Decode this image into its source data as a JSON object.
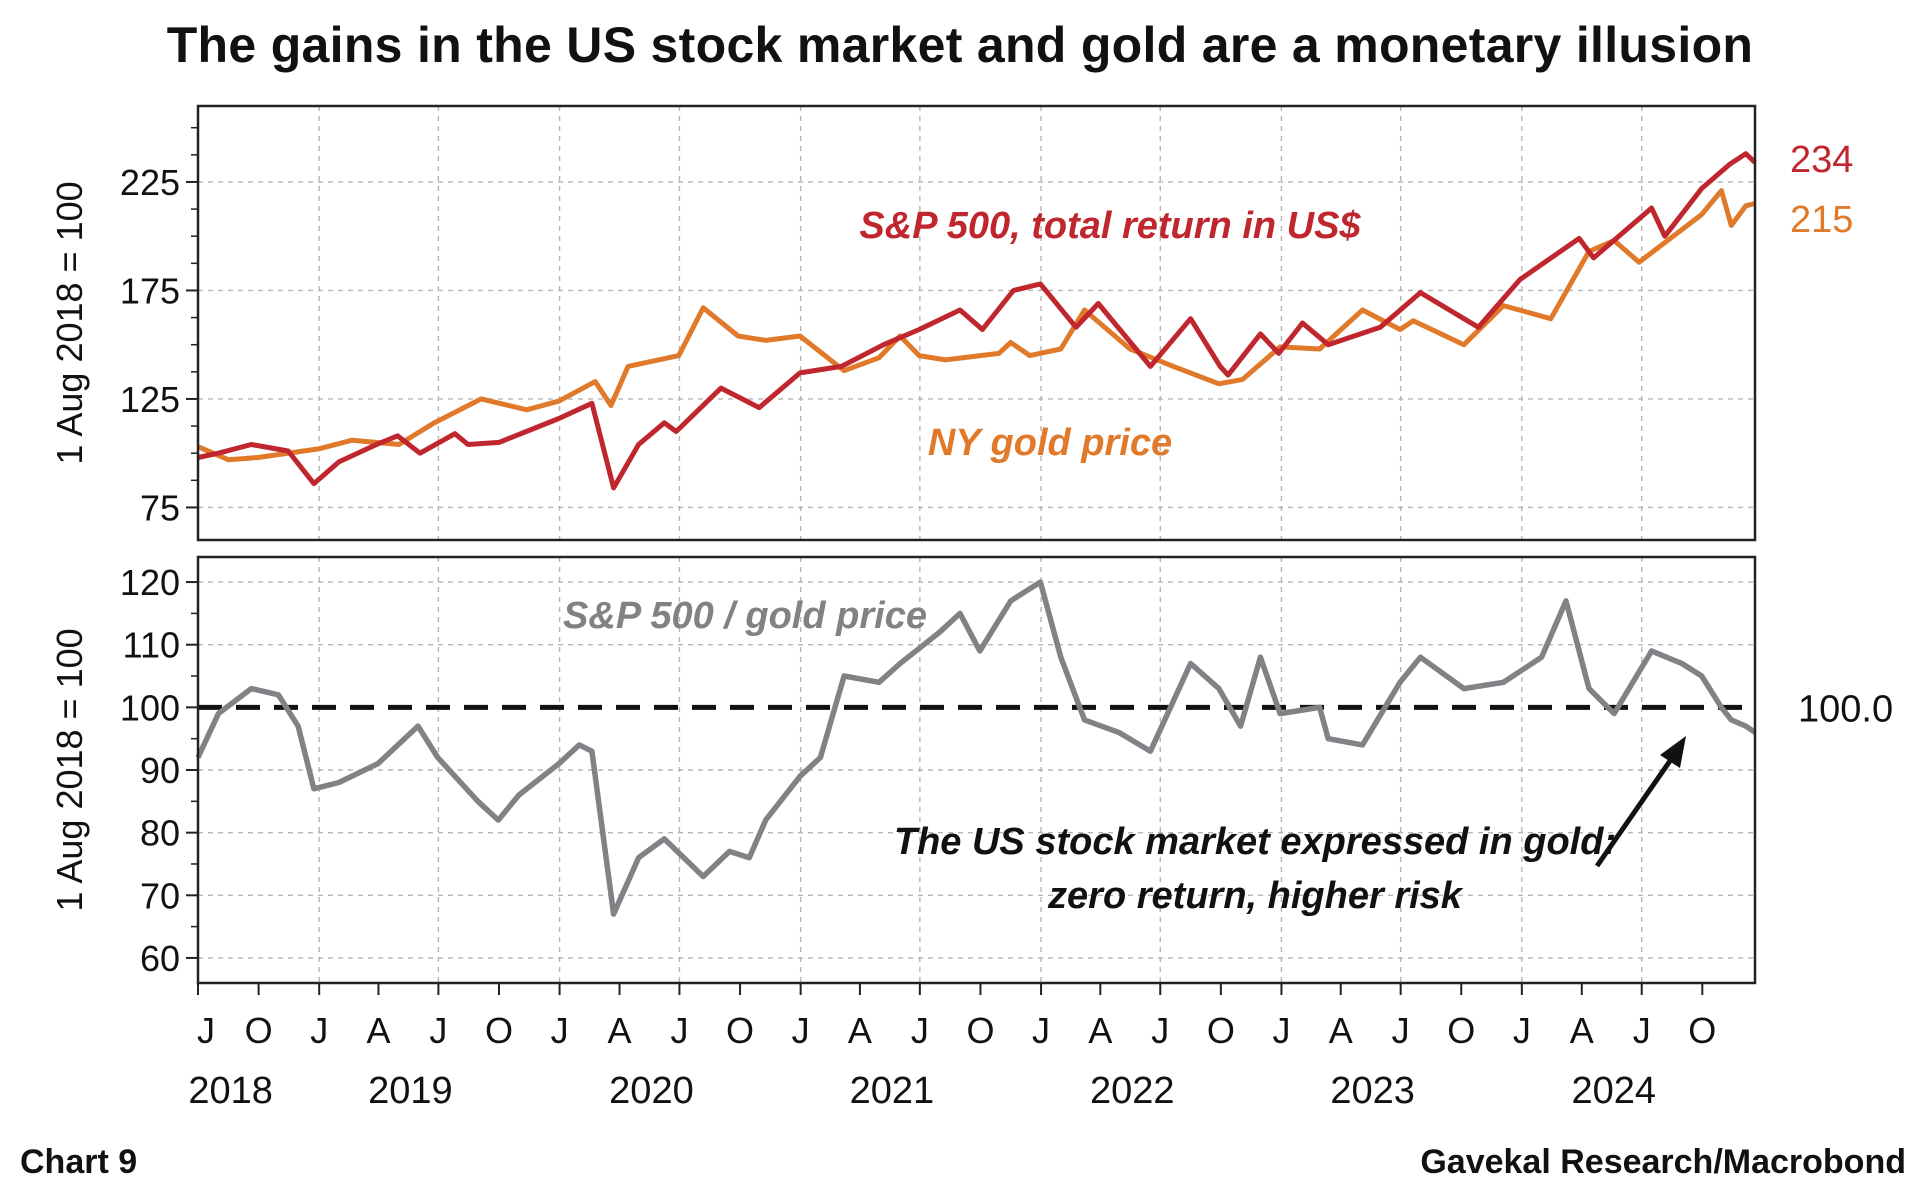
{
  "title": "The gains in the US stock market and gold are a monetary illusion",
  "footer": {
    "left": "Chart 9",
    "right": "Gavekal Research/Macrobond"
  },
  "colors": {
    "sp500": "#c0262d",
    "gold": "#e07a2a",
    "ratio": "#808285",
    "grid": "#b5b5b5",
    "frame": "#222222"
  },
  "chart_data": [
    {
      "type": "line",
      "panel": "top",
      "ylabel": "1 Aug 2018 = 100",
      "ylim": [
        60,
        260
      ],
      "yticks": [
        75,
        125,
        175,
        225
      ],
      "x_range": [
        "2018-07-01",
        "2024-12-20"
      ],
      "series": [
        {
          "name": "S&P 500, total return in US$",
          "last_value_label": "234",
          "points": [
            [
              "2018-07-01",
              98
            ],
            [
              "2018-08-01",
              100
            ],
            [
              "2018-09-20",
              104
            ],
            [
              "2018-11-15",
              101
            ],
            [
              "2018-12-24",
              86
            ],
            [
              "2019-01-31",
              96
            ],
            [
              "2019-03-29",
              104
            ],
            [
              "2019-04-30",
              108
            ],
            [
              "2019-06-03",
              100
            ],
            [
              "2019-07-26",
              109
            ],
            [
              "2019-08-15",
              104
            ],
            [
              "2019-10-01",
              105
            ],
            [
              "2019-12-31",
              116
            ],
            [
              "2020-02-19",
              123
            ],
            [
              "2020-03-23",
              84
            ],
            [
              "2020-04-30",
              104
            ],
            [
              "2020-06-08",
              114
            ],
            [
              "2020-06-26",
              110
            ],
            [
              "2020-09-02",
              130
            ],
            [
              "2020-10-30",
              121
            ],
            [
              "2020-12-31",
              137
            ],
            [
              "2021-03-04",
              140
            ],
            [
              "2021-05-07",
              150
            ],
            [
              "2021-06-30",
              157
            ],
            [
              "2021-08-31",
              166
            ],
            [
              "2021-10-04",
              157
            ],
            [
              "2021-11-20",
              175
            ],
            [
              "2021-12-31",
              178
            ],
            [
              "2022-02-23",
              158
            ],
            [
              "2022-03-29",
              169
            ],
            [
              "2022-06-16",
              140
            ],
            [
              "2022-08-16",
              162
            ],
            [
              "2022-09-30",
              140
            ],
            [
              "2022-10-12",
              136
            ],
            [
              "2022-11-30",
              155
            ],
            [
              "2022-12-28",
              146
            ],
            [
              "2023-02-02",
              160
            ],
            [
              "2023-03-13",
              150
            ],
            [
              "2023-05-31",
              158
            ],
            [
              "2023-07-31",
              174
            ],
            [
              "2023-10-27",
              158
            ],
            [
              "2023-12-29",
              180
            ],
            [
              "2024-03-28",
              199
            ],
            [
              "2024-04-19",
              190
            ],
            [
              "2024-07-16",
              213
            ],
            [
              "2024-08-05",
              200
            ],
            [
              "2024-09-30",
              222
            ],
            [
              "2024-11-11",
              233
            ],
            [
              "2024-12-06",
              238
            ],
            [
              "2024-12-20",
              234
            ]
          ]
        },
        {
          "name": "NY gold price",
          "last_value_label": "215",
          "points": [
            [
              "2018-07-01",
              103
            ],
            [
              "2018-08-16",
              97
            ],
            [
              "2018-09-30",
              98
            ],
            [
              "2018-12-31",
              102
            ],
            [
              "2019-02-20",
              106
            ],
            [
              "2019-05-02",
              104
            ],
            [
              "2019-06-25",
              114
            ],
            [
              "2019-09-04",
              125
            ],
            [
              "2019-11-12",
              120
            ],
            [
              "2019-12-31",
              124
            ],
            [
              "2020-02-24",
              133
            ],
            [
              "2020-03-19",
              122
            ],
            [
              "2020-04-14",
              140
            ],
            [
              "2020-06-30",
              145
            ],
            [
              "2020-08-06",
              167
            ],
            [
              "2020-09-28",
              154
            ],
            [
              "2020-11-09",
              152
            ],
            [
              "2020-12-31",
              154
            ],
            [
              "2021-03-08",
              138
            ],
            [
              "2021-04-30",
              144
            ],
            [
              "2021-06-01",
              154
            ],
            [
              "2021-06-30",
              145
            ],
            [
              "2021-08-09",
              143
            ],
            [
              "2021-10-29",
              146
            ],
            [
              "2021-11-16",
              151
            ],
            [
              "2021-12-15",
              145
            ],
            [
              "2022-01-31",
              148
            ],
            [
              "2022-03-08",
              166
            ],
            [
              "2022-05-16",
              148
            ],
            [
              "2022-07-21",
              140
            ],
            [
              "2022-09-28",
              132
            ],
            [
              "2022-11-03",
              134
            ],
            [
              "2022-12-30",
              149
            ],
            [
              "2023-02-28",
              148
            ],
            [
              "2023-05-04",
              166
            ],
            [
              "2023-06-30",
              157
            ],
            [
              "2023-07-20",
              161
            ],
            [
              "2023-10-05",
              150
            ],
            [
              "2023-12-04",
              168
            ],
            [
              "2024-02-14",
              162
            ],
            [
              "2024-04-12",
              193
            ],
            [
              "2024-05-20",
              198
            ],
            [
              "2024-06-27",
              188
            ],
            [
              "2024-09-30",
              210
            ],
            [
              "2024-10-30",
              221
            ],
            [
              "2024-11-14",
              205
            ],
            [
              "2024-12-06",
              214
            ],
            [
              "2024-12-20",
              215
            ]
          ]
        }
      ],
      "annotations": [
        {
          "text": "S&P 500, total return in US$",
          "series": "sp500"
        },
        {
          "text": "NY gold price",
          "series": "gold"
        }
      ]
    },
    {
      "type": "line",
      "panel": "bottom",
      "ylabel": "1 Aug 2018 = 100",
      "ylim": [
        56,
        124
      ],
      "yticks": [
        60,
        70,
        80,
        90,
        100,
        110,
        120
      ],
      "reference_line": {
        "value": 100,
        "style": "dashed",
        "label": "100.0"
      },
      "x_range": [
        "2018-07-01",
        "2024-12-20"
      ],
      "series": [
        {
          "name": "S&P 500 / gold price",
          "points": [
            [
              "2018-07-01",
              92
            ],
            [
              "2018-08-01",
              99
            ],
            [
              "2018-09-20",
              103
            ],
            [
              "2018-10-31",
              102
            ],
            [
              "2018-11-30",
              97
            ],
            [
              "2018-12-24",
              87
            ],
            [
              "2019-01-31",
              88
            ],
            [
              "2019-03-31",
              91
            ],
            [
              "2019-05-31",
              97
            ],
            [
              "2019-06-30",
              92
            ],
            [
              "2019-08-30",
              85
            ],
            [
              "2019-09-30",
              82
            ],
            [
              "2019-10-31",
              86
            ],
            [
              "2019-12-31",
              91
            ],
            [
              "2020-01-31",
              94
            ],
            [
              "2020-02-19",
              93
            ],
            [
              "2020-03-23",
              67
            ],
            [
              "2020-04-30",
              76
            ],
            [
              "2020-06-08",
              79
            ],
            [
              "2020-08-06",
              73
            ],
            [
              "2020-09-15",
              77
            ],
            [
              "2020-10-15",
              76
            ],
            [
              "2020-11-09",
              82
            ],
            [
              "2020-12-31",
              89
            ],
            [
              "2021-01-31",
              92
            ],
            [
              "2021-03-08",
              105
            ],
            [
              "2021-04-30",
              104
            ],
            [
              "2021-06-01",
              107
            ],
            [
              "2021-07-31",
              112
            ],
            [
              "2021-08-31",
              115
            ],
            [
              "2021-09-30",
              109
            ],
            [
              "2021-11-16",
              117
            ],
            [
              "2021-12-31",
              120
            ],
            [
              "2022-01-31",
              108
            ],
            [
              "2022-03-08",
              98
            ],
            [
              "2022-04-29",
              96
            ],
            [
              "2022-06-16",
              93
            ],
            [
              "2022-08-16",
              107
            ],
            [
              "2022-09-28",
              103
            ],
            [
              "2022-10-31",
              97
            ],
            [
              "2022-11-30",
              108
            ],
            [
              "2022-12-30",
              99
            ],
            [
              "2023-02-28",
              100
            ],
            [
              "2023-03-13",
              95
            ],
            [
              "2023-05-04",
              94
            ],
            [
              "2023-06-30",
              104
            ],
            [
              "2023-07-31",
              108
            ],
            [
              "2023-10-05",
              103
            ],
            [
              "2023-12-04",
              104
            ],
            [
              "2024-01-31",
              108
            ],
            [
              "2024-03-08",
              117
            ],
            [
              "2024-04-12",
              103
            ],
            [
              "2024-05-20",
              99
            ],
            [
              "2024-07-16",
              109
            ],
            [
              "2024-08-31",
              107
            ],
            [
              "2024-09-30",
              105
            ],
            [
              "2024-10-30",
              100
            ],
            [
              "2024-11-14",
              98
            ],
            [
              "2024-12-06",
              97
            ],
            [
              "2024-12-20",
              96
            ]
          ]
        }
      ],
      "annotations": [
        {
          "text": "S&P 500 / gold price",
          "series": "ratio"
        },
        {
          "lines": [
            "The US stock market expressed in gold:",
            "zero return, higher risk"
          ],
          "arrow": true
        }
      ]
    }
  ],
  "x_axis": {
    "month_ticks": [
      {
        "label": "J",
        "date": "2018-07-01"
      },
      {
        "label": "O",
        "date": "2018-10-01"
      },
      {
        "label": "J",
        "date": "2019-01-01"
      },
      {
        "label": "A",
        "date": "2019-04-01"
      },
      {
        "label": "J",
        "date": "2019-07-01"
      },
      {
        "label": "O",
        "date": "2019-10-01"
      },
      {
        "label": "J",
        "date": "2020-01-01"
      },
      {
        "label": "A",
        "date": "2020-04-01"
      },
      {
        "label": "J",
        "date": "2020-07-01"
      },
      {
        "label": "O",
        "date": "2020-10-01"
      },
      {
        "label": "J",
        "date": "2021-01-01"
      },
      {
        "label": "A",
        "date": "2021-04-01"
      },
      {
        "label": "J",
        "date": "2021-07-01"
      },
      {
        "label": "O",
        "date": "2021-10-01"
      },
      {
        "label": "J",
        "date": "2022-01-01"
      },
      {
        "label": "A",
        "date": "2022-04-01"
      },
      {
        "label": "J",
        "date": "2022-07-01"
      },
      {
        "label": "O",
        "date": "2022-10-01"
      },
      {
        "label": "J",
        "date": "2023-01-01"
      },
      {
        "label": "A",
        "date": "2023-04-01"
      },
      {
        "label": "J",
        "date": "2023-07-01"
      },
      {
        "label": "O",
        "date": "2023-10-01"
      },
      {
        "label": "J",
        "date": "2024-01-01"
      },
      {
        "label": "A",
        "date": "2024-04-01"
      },
      {
        "label": "J",
        "date": "2024-07-01"
      },
      {
        "label": "O",
        "date": "2024-10-01"
      }
    ],
    "year_labels": [
      {
        "label": "2018",
        "date": "2018-10-01"
      },
      {
        "label": "2019",
        "date": "2019-07-01"
      },
      {
        "label": "2020",
        "date": "2020-07-01"
      },
      {
        "label": "2021",
        "date": "2021-07-01"
      },
      {
        "label": "2022",
        "date": "2022-07-01"
      },
      {
        "label": "2023",
        "date": "2023-07-01"
      },
      {
        "label": "2024",
        "date": "2024-07-01"
      }
    ]
  }
}
